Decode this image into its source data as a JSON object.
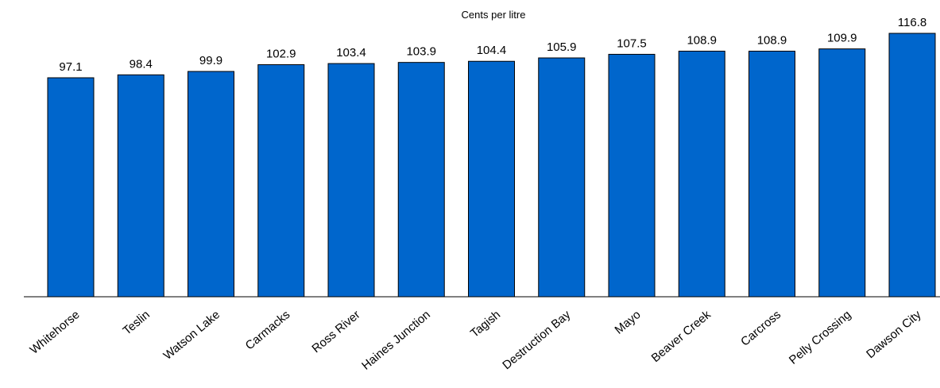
{
  "chart_data": {
    "type": "bar",
    "title": "",
    "ylabel": "Cents per litre",
    "xlabel": "",
    "categories": [
      "Whitehorse",
      "Teslin",
      "Watson Lake",
      "Carmacks",
      "Ross River",
      "Haines Junction",
      "Tagish",
      "Destruction Bay",
      "Mayo",
      "Beaver Creek",
      "Carcross",
      "Pelly Crossing",
      "Dawson City"
    ],
    "values": [
      97.1,
      98.4,
      99.9,
      102.9,
      103.4,
      103.9,
      104.4,
      105.9,
      107.5,
      108.9,
      108.9,
      109.9,
      116.8
    ],
    "value_labels": [
      "97.1",
      "98.4",
      "99.9",
      "102.9",
      "103.4",
      "103.9",
      "104.4",
      "105.9",
      "107.5",
      "108.9",
      "108.9",
      "109.9",
      "116.8"
    ],
    "ylim": [
      0,
      116.8
    ],
    "grid": false,
    "legend": "none",
    "colors": {
      "bar": "#0066CC",
      "bar_stroke": "#000000",
      "axis": "#000000"
    }
  }
}
